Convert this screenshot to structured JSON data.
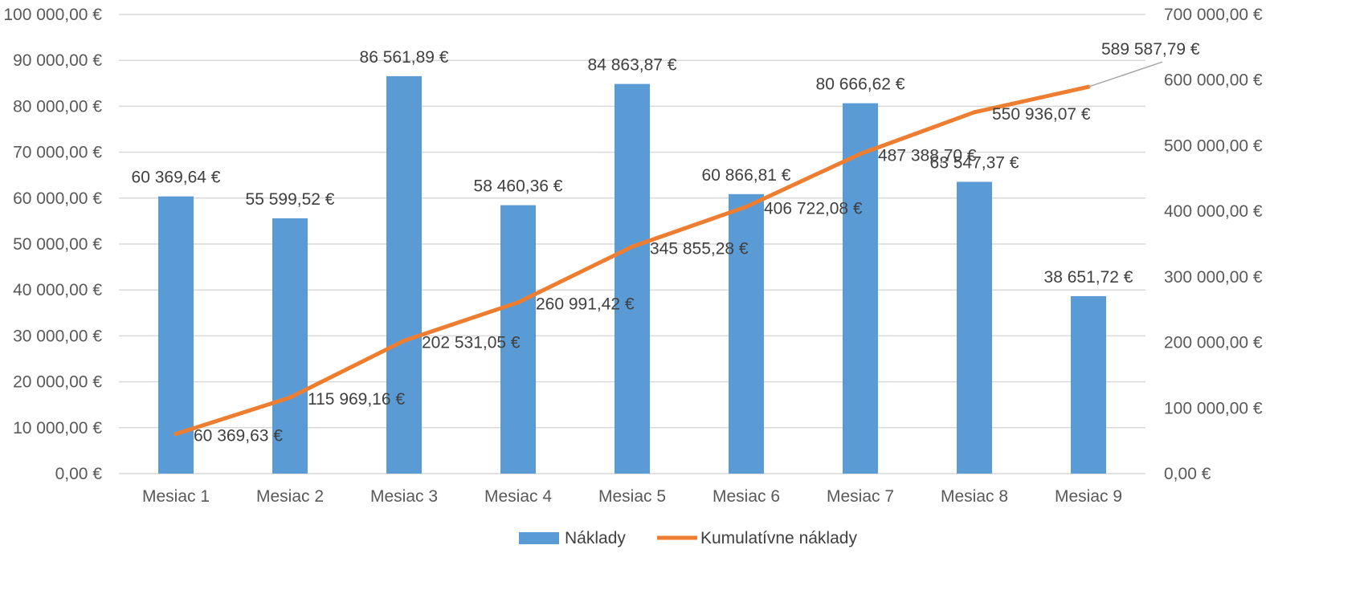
{
  "chart_data": {
    "type": "bar",
    "categories": [
      "Mesiac 1",
      "Mesiac 2",
      "Mesiac 3",
      "Mesiac 4",
      "Mesiac 5",
      "Mesiac 6",
      "Mesiac 7",
      "Mesiac 8",
      "Mesiac 9"
    ],
    "series": [
      {
        "name": "Náklady",
        "type": "bar",
        "axis": "left",
        "color": "#5B9BD5",
        "values": [
          60369.64,
          55599.52,
          86561.89,
          58460.36,
          84863.87,
          60866.81,
          80666.62,
          63547.37,
          38651.72
        ],
        "labels": [
          "60 369,64 €",
          "55 599,52 €",
          "86 561,89 €",
          "58 460,36 €",
          "84 863,87 €",
          "60 866,81 €",
          "80 666,62 €",
          "63 547,37 €",
          "38 651,72 €"
        ]
      },
      {
        "name": "Kumulatívne náklady",
        "type": "line",
        "axis": "right",
        "color": "#ED7D31",
        "values": [
          60369.63,
          115969.16,
          202531.05,
          260991.42,
          345855.28,
          406722.08,
          487388.7,
          550936.07,
          589587.79
        ],
        "labels": [
          "60 369,63 €",
          "115 969,16 €",
          "202 531,05 €",
          "260 991,42 €",
          "345 855,28 €",
          "406 722,08 €",
          "487 388,70 €",
          "550 936,07 €",
          "589 587,79 €"
        ]
      }
    ],
    "y_left": {
      "ylim": [
        0,
        100000
      ],
      "ticks": [
        "0,00 €",
        "10 000,00 €",
        "20 000,00 €",
        "30 000,00 €",
        "40 000,00 €",
        "50 000,00 €",
        "60 000,00 €",
        "70 000,00 €",
        "80 000,00 €",
        "90 000,00 €",
        "100 000,00 €"
      ]
    },
    "y_right": {
      "ylim": [
        0,
        700000
      ],
      "ticks": [
        "0,00 €",
        "100 000,00 €",
        "200 000,00 €",
        "300 000,00 €",
        "400 000,00 €",
        "500 000,00 €",
        "600 000,00 €",
        "700 000,00 €"
      ]
    },
    "grid": true,
    "legend": "bottom",
    "title": "",
    "xlabel": "",
    "ylabel": ""
  }
}
